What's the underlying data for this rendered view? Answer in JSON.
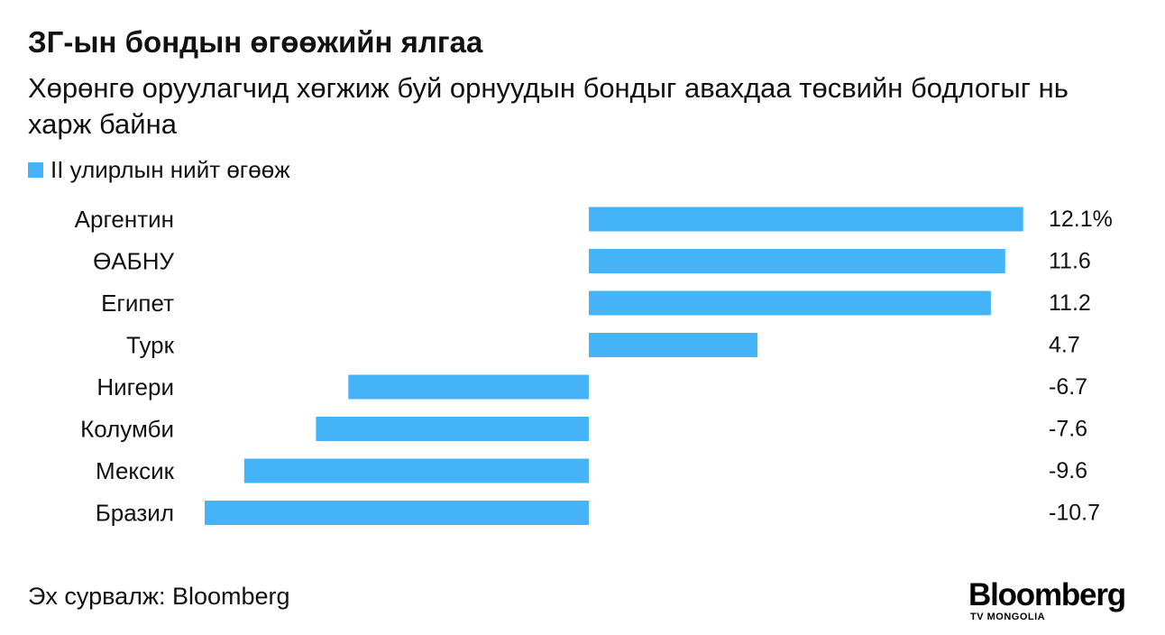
{
  "chart_data": {
    "type": "bar",
    "orientation": "horizontal",
    "title": "ЗГ-ын бондын өгөөжийн ялгаа",
    "subtitle": "Хөрөнгө оруулагчид хөгжиж буй орнуудын бондыг авахдаа төсвийн бодлогыг нь харж байна",
    "categories": [
      "Аргентин",
      "ӨАБНУ",
      "Египет",
      "Турк",
      "Нигери",
      "Колумби",
      "Мексик",
      "Бразил"
    ],
    "series": [
      {
        "name": "II улирлын нийт өгөөж",
        "values": [
          12.1,
          11.6,
          11.2,
          4.7,
          -6.7,
          -7.6,
          -9.6,
          -10.7
        ],
        "value_labels": [
          "12.1%",
          "11.6",
          "11.2",
          "4.7",
          "-6.7",
          "-7.6",
          "-9.6",
          "-10.7"
        ],
        "color": "#45b3f7"
      }
    ],
    "xlim": [
      -10.7,
      12.1
    ],
    "grid": false,
    "legend_position": "top-left"
  },
  "source": "Эх сурвалж: Bloomberg",
  "logo": {
    "main": "Bloomberg",
    "sub": "TV MONGOLIA"
  }
}
